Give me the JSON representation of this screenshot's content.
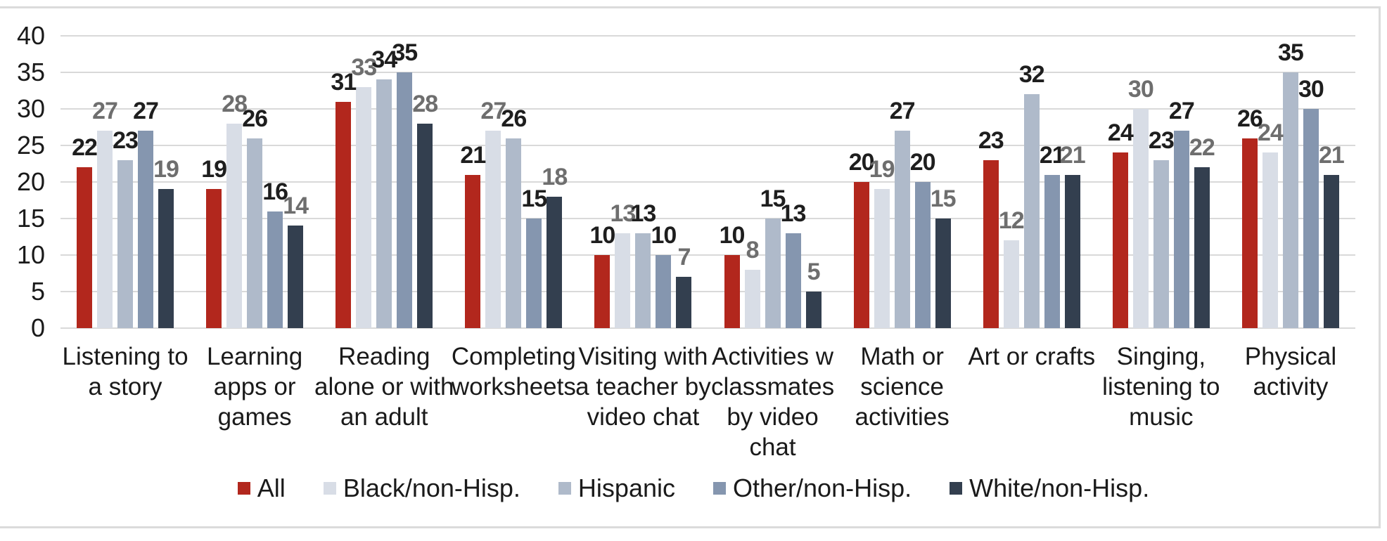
{
  "chart_data": {
    "type": "bar",
    "title": "",
    "xlabel": "",
    "ylabel": "",
    "grid": true,
    "legend_position": "bottom",
    "y_axis": {
      "min": 0,
      "max": 40,
      "step": 5,
      "tick_labels": [
        "0",
        "5",
        "10",
        "15",
        "20",
        "25",
        "30",
        "35",
        "40"
      ]
    },
    "categories": [
      "Listening to a story",
      "Learning apps or games",
      "Reading alone or with an adult",
      "Completing worksheets",
      "Visiting with a teacher by video chat",
      "Activities w classmates by video chat",
      "Math or science activities",
      "Art or crafts",
      "Singing, listening to music",
      "Physical activity"
    ],
    "category_lines": [
      [
        "Listening to",
        "a story"
      ],
      [
        "Learning",
        "apps or",
        "games"
      ],
      [
        "Reading",
        "alone or with",
        "an adult"
      ],
      [
        "Completing",
        "worksheets"
      ],
      [
        "Visiting with",
        "a teacher by",
        "video chat"
      ],
      [
        "Activities w",
        "classmates",
        "by video",
        "chat"
      ],
      [
        "Math or",
        "science",
        "activities"
      ],
      [
        "Art or crafts"
      ],
      [
        "Singing,",
        "listening to",
        "music"
      ],
      [
        "Physical",
        "activity"
      ]
    ],
    "series": [
      {
        "name": "All",
        "color": "#B2271D",
        "label_color": "#1E1E1E",
        "values": [
          22,
          19,
          31,
          21,
          10,
          10,
          20,
          23,
          24,
          26
        ]
      },
      {
        "name": "Black/non-Hisp.",
        "color": "#D8DDE6",
        "label_color": "#6E6E6E",
        "values": [
          27,
          28,
          33,
          27,
          13,
          8,
          19,
          12,
          30,
          24
        ]
      },
      {
        "name": "Hispanic",
        "color": "#AFBACA",
        "label_color": "#1E1E1E",
        "values": [
          23,
          26,
          34,
          26,
          13,
          15,
          27,
          32,
          23,
          35
        ]
      },
      {
        "name": "Other/non-Hisp.",
        "color": "#8596AF",
        "label_color": "#1E1E1E",
        "values": [
          27,
          16,
          35,
          15,
          10,
          13,
          20,
          21,
          27,
          30
        ]
      },
      {
        "name": "White/non-Hisp.",
        "color": "#333F4F",
        "label_color": "#6E6E6E",
        "values": [
          19,
          14,
          28,
          18,
          7,
          5,
          15,
          21,
          22,
          21
        ]
      }
    ],
    "colors": {
      "gridline": "#D9D9D9",
      "axis_text": "#1A1A1A",
      "border": "#DBDBDB",
      "background": "#FFFFFF"
    }
  }
}
